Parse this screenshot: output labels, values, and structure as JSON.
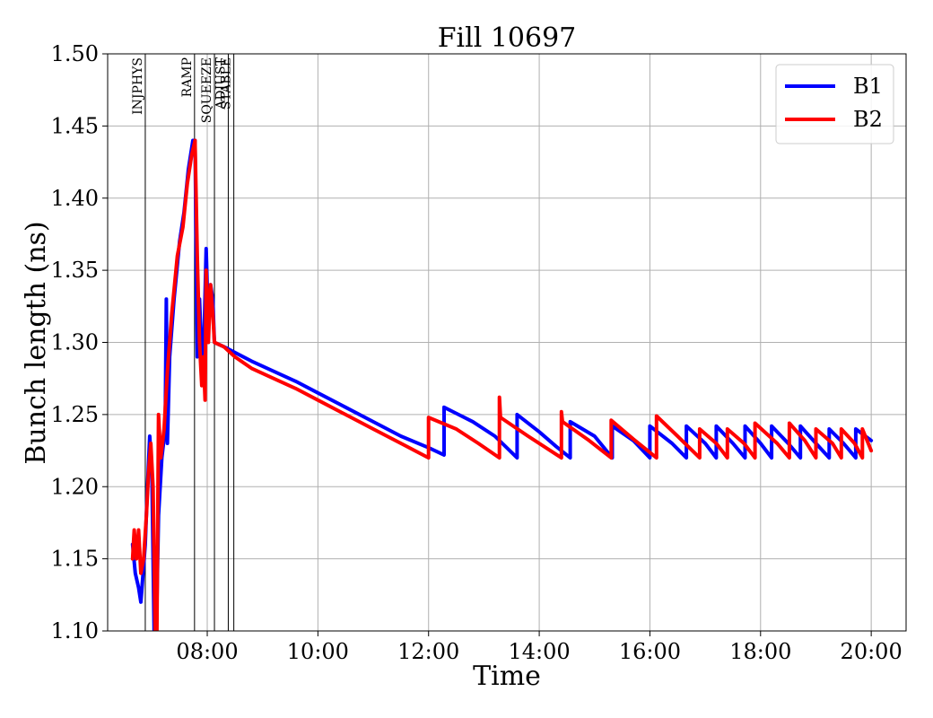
{
  "chart_data": {
    "type": "line",
    "title": "Fill 10697",
    "xlabel": "Time",
    "ylabel": "Bunch length (ns)",
    "ylim": [
      1.1,
      1.5
    ],
    "xlim_hours": [
      6.2,
      20.63
    ],
    "y_ticks": [
      1.1,
      1.15,
      1.2,
      1.25,
      1.3,
      1.35,
      1.4,
      1.45,
      1.5
    ],
    "x_ticks": [
      {
        "value": 8,
        "label": "08:00"
      },
      {
        "value": 10,
        "label": "10:00"
      },
      {
        "value": 12,
        "label": "12:00"
      },
      {
        "value": 14,
        "label": "14:00"
      },
      {
        "value": 16,
        "label": "16:00"
      },
      {
        "value": 18,
        "label": "18:00"
      },
      {
        "value": 20,
        "label": "20:00"
      }
    ],
    "grid": true,
    "legend_position": "top-right",
    "phases": [
      {
        "label": "INJPHYS",
        "x": 6.88
      },
      {
        "label": "RAMP",
        "x": 7.77
      },
      {
        "label": "SQUEEZE",
        "x": 8.13
      },
      {
        "label": "ADJUST",
        "x": 8.38
      },
      {
        "label": "STABLE",
        "x": 8.48
      }
    ],
    "series": [
      {
        "name": "B1",
        "color": "#0000ff",
        "points": [
          [
            6.65,
            1.16
          ],
          [
            6.7,
            1.14
          ],
          [
            6.76,
            1.13
          ],
          [
            6.8,
            1.12
          ],
          [
            6.84,
            1.14
          ],
          [
            6.88,
            1.16
          ],
          [
            6.92,
            1.2
          ],
          [
            6.96,
            1.235
          ],
          [
            7.0,
            1.21
          ],
          [
            7.04,
            1.1
          ],
          [
            7.08,
            1.1
          ],
          [
            7.12,
            1.18
          ],
          [
            7.18,
            1.22
          ],
          [
            7.24,
            1.24
          ],
          [
            7.26,
            1.33
          ],
          [
            7.28,
            1.23
          ],
          [
            7.32,
            1.29
          ],
          [
            7.4,
            1.33
          ],
          [
            7.5,
            1.37
          ],
          [
            7.58,
            1.39
          ],
          [
            7.66,
            1.42
          ],
          [
            7.74,
            1.44
          ],
          [
            7.78,
            1.44
          ],
          [
            7.82,
            1.29
          ],
          [
            7.86,
            1.33
          ],
          [
            7.9,
            1.29
          ],
          [
            7.94,
            1.3
          ],
          [
            7.98,
            1.365
          ],
          [
            8.02,
            1.31
          ],
          [
            8.06,
            1.34
          ],
          [
            8.1,
            1.33
          ],
          [
            8.13,
            1.3
          ],
          [
            8.3,
            1.297
          ],
          [
            8.5,
            1.293
          ],
          [
            8.8,
            1.287
          ],
          [
            9.2,
            1.28
          ],
          [
            9.6,
            1.273
          ],
          [
            10.0,
            1.265
          ],
          [
            10.5,
            1.255
          ],
          [
            11.0,
            1.245
          ],
          [
            11.5,
            1.235
          ],
          [
            12.0,
            1.227
          ],
          [
            12.28,
            1.222
          ],
          [
            12.28,
            1.255
          ],
          [
            12.8,
            1.245
          ],
          [
            13.2,
            1.235
          ],
          [
            13.6,
            1.22
          ],
          [
            13.6,
            1.25
          ],
          [
            14.0,
            1.238
          ],
          [
            14.3,
            1.228
          ],
          [
            14.56,
            1.22
          ],
          [
            14.56,
            1.245
          ],
          [
            15.0,
            1.235
          ],
          [
            15.32,
            1.22
          ],
          [
            15.32,
            1.242
          ],
          [
            15.7,
            1.232
          ],
          [
            16.0,
            1.22
          ],
          [
            16.0,
            1.242
          ],
          [
            16.4,
            1.23
          ],
          [
            16.66,
            1.22
          ],
          [
            16.66,
            1.242
          ],
          [
            17.0,
            1.23
          ],
          [
            17.2,
            1.22
          ],
          [
            17.2,
            1.242
          ],
          [
            17.5,
            1.23
          ],
          [
            17.72,
            1.22
          ],
          [
            17.72,
            1.242
          ],
          [
            18.0,
            1.23
          ],
          [
            18.2,
            1.22
          ],
          [
            18.2,
            1.242
          ],
          [
            18.5,
            1.23
          ],
          [
            18.72,
            1.22
          ],
          [
            18.72,
            1.242
          ],
          [
            19.0,
            1.23
          ],
          [
            19.24,
            1.22
          ],
          [
            19.24,
            1.24
          ],
          [
            19.5,
            1.23
          ],
          [
            19.72,
            1.22
          ],
          [
            19.72,
            1.24
          ],
          [
            20.0,
            1.232
          ]
        ]
      },
      {
        "name": "B2",
        "color": "#ff0000",
        "points": [
          [
            6.65,
            1.15
          ],
          [
            6.68,
            1.17
          ],
          [
            6.72,
            1.15
          ],
          [
            6.76,
            1.17
          ],
          [
            6.8,
            1.14
          ],
          [
            6.85,
            1.15
          ],
          [
            6.9,
            1.18
          ],
          [
            6.94,
            1.21
          ],
          [
            6.98,
            1.23
          ],
          [
            7.02,
            1.2
          ],
          [
            7.06,
            1.1
          ],
          [
            7.09,
            1.1
          ],
          [
            7.12,
            1.25
          ],
          [
            7.16,
            1.22
          ],
          [
            7.22,
            1.24
          ],
          [
            7.28,
            1.28
          ],
          [
            7.36,
            1.32
          ],
          [
            7.46,
            1.36
          ],
          [
            7.56,
            1.38
          ],
          [
            7.64,
            1.41
          ],
          [
            7.72,
            1.43
          ],
          [
            7.78,
            1.44
          ],
          [
            7.82,
            1.36
          ],
          [
            7.86,
            1.3
          ],
          [
            7.9,
            1.27
          ],
          [
            7.93,
            1.29
          ],
          [
            7.96,
            1.26
          ],
          [
            7.98,
            1.35
          ],
          [
            8.02,
            1.3
          ],
          [
            8.06,
            1.34
          ],
          [
            8.1,
            1.32
          ],
          [
            8.13,
            1.3
          ],
          [
            8.3,
            1.297
          ],
          [
            8.5,
            1.29
          ],
          [
            8.8,
            1.282
          ],
          [
            9.2,
            1.275
          ],
          [
            9.6,
            1.268
          ],
          [
            10.0,
            1.26
          ],
          [
            10.5,
            1.25
          ],
          [
            11.0,
            1.24
          ],
          [
            11.5,
            1.23
          ],
          [
            12.0,
            1.22
          ],
          [
            12.0,
            1.248
          ],
          [
            12.5,
            1.24
          ],
          [
            12.9,
            1.23
          ],
          [
            13.28,
            1.22
          ],
          [
            13.28,
            1.262
          ],
          [
            13.3,
            1.248
          ],
          [
            13.8,
            1.235
          ],
          [
            14.4,
            1.22
          ],
          [
            14.4,
            1.252
          ],
          [
            14.42,
            1.245
          ],
          [
            14.9,
            1.232
          ],
          [
            15.3,
            1.22
          ],
          [
            15.3,
            1.246
          ],
          [
            15.7,
            1.233
          ],
          [
            16.12,
            1.22
          ],
          [
            16.12,
            1.249
          ],
          [
            16.5,
            1.235
          ],
          [
            16.9,
            1.22
          ],
          [
            16.9,
            1.24
          ],
          [
            17.2,
            1.23
          ],
          [
            17.4,
            1.22
          ],
          [
            17.4,
            1.24
          ],
          [
            17.7,
            1.23
          ],
          [
            17.9,
            1.22
          ],
          [
            17.9,
            1.244
          ],
          [
            18.3,
            1.23
          ],
          [
            18.52,
            1.22
          ],
          [
            18.52,
            1.244
          ],
          [
            18.8,
            1.232
          ],
          [
            19.0,
            1.22
          ],
          [
            19.0,
            1.24
          ],
          [
            19.3,
            1.23
          ],
          [
            19.46,
            1.22
          ],
          [
            19.46,
            1.24
          ],
          [
            19.7,
            1.23
          ],
          [
            19.84,
            1.22
          ],
          [
            19.84,
            1.24
          ],
          [
            20.0,
            1.225
          ]
        ]
      }
    ]
  }
}
